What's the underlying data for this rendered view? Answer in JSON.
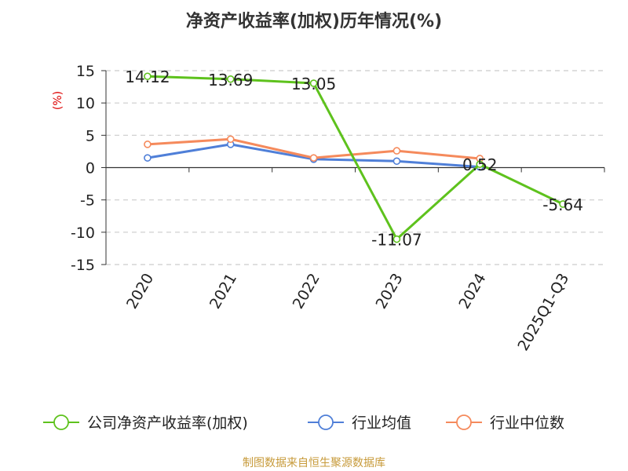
{
  "chart_data": {
    "type": "line",
    "title": "净资产收益率(加权)历年情况(%)",
    "ylabel": "(%)",
    "xlabel": "",
    "ylim": [
      -15,
      15
    ],
    "yticks": [
      15,
      10,
      5,
      0,
      -5,
      -10,
      -15
    ],
    "categories": [
      "2020",
      "2021",
      "2022",
      "2023",
      "2024",
      "2025Q1-Q3"
    ],
    "series": [
      {
        "name": "公司净资产收益率(加权)",
        "color": "#5ec21d",
        "values": [
          14.12,
          13.69,
          13.05,
          -11.07,
          0.52,
          -5.64
        ],
        "labels": [
          "14.12",
          "13.69",
          "13.05",
          "-11.07",
          "0.52",
          "-5.64"
        ]
      },
      {
        "name": "行业均值",
        "color": "#4f7fd8",
        "values": [
          1.5,
          3.6,
          1.3,
          1.0,
          0.1,
          null
        ]
      },
      {
        "name": "行业中位数",
        "color": "#f58a5c",
        "values": [
          3.6,
          4.4,
          1.5,
          2.6,
          1.4,
          null
        ]
      }
    ],
    "grid": true,
    "legend": "bottom"
  },
  "footer": {
    "source": "制图数据来自恒生聚源数据库"
  },
  "colors": {
    "ylabel": "#dd0000",
    "source": "#c79a3a",
    "axis": "#333333",
    "grid": "#cccccc"
  }
}
